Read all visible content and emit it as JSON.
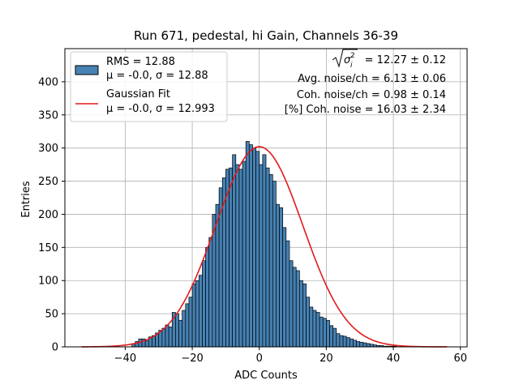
{
  "chart_data": {
    "type": "bar",
    "title": "Run 671, pedestal, hi Gain, Channels 36-39",
    "xlabel": "ADC Counts",
    "ylabel": "Entries",
    "xlim": [
      -58,
      62
    ],
    "ylim": [
      0,
      450
    ],
    "xticks": [
      -40,
      -20,
      0,
      20,
      40,
      60
    ],
    "yticks": [
      0,
      50,
      100,
      150,
      200,
      250,
      300,
      350,
      400
    ],
    "grid": true,
    "colors": {
      "hist_fill": "#4682b4",
      "hist_edge": "#000000",
      "fit_line": "#e31a1c"
    },
    "histogram": {
      "name": "RMS = 12.88",
      "stats_label": "μ = -0.0, σ = 12.88",
      "bin_start": -38,
      "bin_width": 1,
      "counts": [
        5,
        8,
        12,
        12,
        9,
        15,
        17,
        21,
        25,
        28,
        33,
        30,
        52,
        50,
        40,
        55,
        65,
        75,
        95,
        100,
        108,
        130,
        150,
        165,
        200,
        215,
        240,
        255,
        268,
        270,
        290,
        275,
        268,
        280,
        310,
        305,
        300,
        295,
        275,
        290,
        270,
        260,
        250,
        215,
        210,
        180,
        160,
        130,
        120,
        115,
        100,
        95,
        75,
        60,
        55,
        52,
        45,
        43,
        40,
        32,
        28,
        20,
        17,
        16,
        14,
        12,
        10,
        8,
        7,
        6,
        5,
        4,
        3,
        2,
        2,
        1,
        1,
        1,
        1,
        0,
        1
      ]
    },
    "fit": {
      "name": "Gaussian Fit",
      "stats_label": "μ = -0.0, σ = 12.993",
      "mu": 0.0,
      "sigma": 12.993,
      "amplitude": 302,
      "x_range": [
        -53,
        56
      ]
    },
    "legend_position": "upper-left",
    "annotations": {
      "sigma_total_value": "= 12.27 ± 0.12",
      "avg_noise": "Avg. noise/ch = 6.13 ± 0.06",
      "coh_noise": "Coh. noise/ch = 0.98 ± 0.14",
      "pct_coh_noise": "[%] Coh. noise = 16.03 ± 2.34"
    }
  }
}
